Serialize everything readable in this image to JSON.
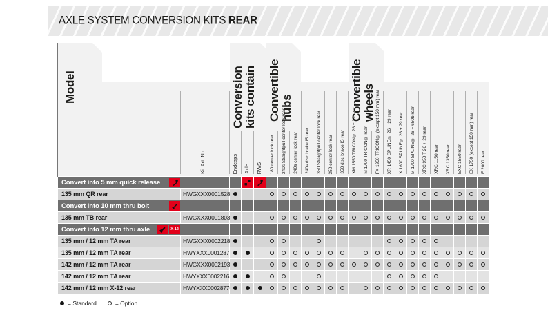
{
  "title": {
    "text": "AXLE SYSTEM CONVERSION KITS",
    "emphasis": "REAR"
  },
  "table": {
    "model_label": "Model",
    "kit_art_no_label": "Kit Art. No.",
    "kit_contains": {
      "label": "Conversion\nkits contain",
      "columns": [
        "Endcaps",
        "Axle",
        "RWS"
      ]
    },
    "hubs": {
      "label": "Convertible\nhubs",
      "columns": [
        "180 center lock rear",
        "240s Straightpull center lock rear",
        "240s center lock rear",
        "240s disc brake IS rear",
        "350 Straightpull center lock rear",
        "350 center lock rear",
        "350 disc brake IS rear"
      ]
    },
    "wheels": {
      "label": "Convertible\nwheels",
      "columns": [
        "XM 1550 TRICON® 26 + 29 rear",
        "M 1700 TRICON® rear",
        "FX 1950 TRICON® (except 150 mm) rear",
        "XR 1450 SPLINE® 26 + 29 rear",
        "X 1600 SPLINE® 26 + 29 rear",
        "M 1700 SPLINE® 26 + 650b rear",
        "XRC 950 T 26 + 29 rear",
        "XRC 1150 rear",
        "XRC 1350 rear",
        "EXC 1550 rear",
        "EX 1750 (except 150 mm) rear",
        "E 2000 rear"
      ]
    },
    "sections": [
      {
        "title": "Convert into 5 mm quick release",
        "title_icons": [
          "qr-lever-icon"
        ],
        "contain_cell_icons": [
          "",
          "endcaps-icon",
          "qr-lever-icon"
        ],
        "rows": [
          {
            "model": "135 mm QR rear",
            "art_no": "HWGXXX0001528S",
            "contains": [
              1,
              0,
              0
            ],
            "options": [
              1,
              1,
              1,
              1,
              1,
              1,
              1,
              1,
              1,
              1,
              1,
              1,
              1,
              1,
              1,
              1,
              1,
              1,
              1
            ]
          }
        ]
      },
      {
        "title": "Convert into 10 mm thru bolt",
        "title_icons": [
          "thru-bolt-icon"
        ],
        "contain_cell_icons": [
          "",
          "",
          ""
        ],
        "rows": [
          {
            "model": "135 mm TB rear",
            "art_no": "HWGXXX0001803S",
            "contains": [
              1,
              0,
              0
            ],
            "options": [
              1,
              1,
              1,
              1,
              1,
              1,
              1,
              1,
              1,
              1,
              1,
              1,
              1,
              1,
              1,
              1,
              1,
              1,
              1
            ]
          }
        ]
      },
      {
        "title": "Convert into 12 mm thru axle",
        "title_icons": [
          "thru-axle-icon",
          "x12-badge"
        ],
        "x12_text": "X-12",
        "contain_cell_icons": [
          "",
          "",
          ""
        ],
        "rows": [
          {
            "model": "135 mm / 12 mm TA rear",
            "art_no": "HWGXXX0002218S",
            "contains": [
              1,
              0,
              0
            ],
            "options": [
              1,
              1,
              0,
              0,
              1,
              0,
              0,
              0,
              0,
              0,
              1,
              1,
              1,
              1,
              1,
              0,
              0,
              0,
              0
            ]
          },
          {
            "model": "135 mm / 12 mm TA rear",
            "art_no": "HWYXXX0001287S",
            "contains": [
              1,
              1,
              0
            ],
            "options": [
              1,
              1,
              1,
              1,
              1,
              1,
              1,
              0,
              1,
              1,
              1,
              1,
              1,
              1,
              1,
              1,
              1,
              1,
              1
            ]
          },
          {
            "model": "142 mm / 12 mm TA rear",
            "art_no": "HWGXXX0002193C",
            "contains": [
              1,
              0,
              0
            ],
            "options": [
              1,
              1,
              1,
              1,
              1,
              1,
              1,
              1,
              1,
              1,
              1,
              1,
              1,
              1,
              1,
              1,
              1,
              1,
              1
            ]
          },
          {
            "model": "142 mm / 12 mm TA rear",
            "art_no": "HWYXXX0002216S",
            "contains": [
              1,
              1,
              0
            ],
            "options": [
              1,
              1,
              0,
              0,
              1,
              0,
              0,
              0,
              0,
              0,
              1,
              1,
              1,
              1,
              1,
              0,
              0,
              0,
              0
            ]
          },
          {
            "model": "142 mm / 12 mm X-12 rear",
            "art_no": "HWYXXX0002877C",
            "contains": [
              1,
              1,
              1
            ],
            "options": [
              1,
              1,
              1,
              1,
              1,
              1,
              1,
              0,
              1,
              1,
              1,
              1,
              1,
              1,
              1,
              1,
              1,
              1,
              1
            ]
          }
        ]
      }
    ]
  },
  "legend": {
    "standard": "=  Standard",
    "option": "=  Option"
  },
  "colors": {
    "accent_red": "#e2001a",
    "section_header_bg": "#6f6f6f"
  }
}
